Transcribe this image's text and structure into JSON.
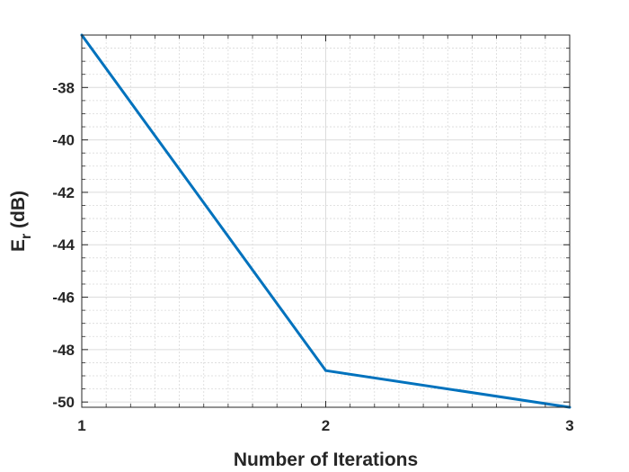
{
  "chart_data": {
    "type": "line",
    "title": "",
    "xlabel": "Number of Iterations",
    "ylabel_main": "E",
    "ylabel_sub": "r",
    "ylabel_rest": " (dB)",
    "xlim": [
      1,
      3
    ],
    "ylim": [
      -50.2,
      -36
    ],
    "xticks": [
      1,
      2,
      3
    ],
    "yticks": [
      -50,
      -48,
      -46,
      -44,
      -42,
      -40,
      -38
    ],
    "grid": true,
    "minor_grid": true,
    "legend": "none",
    "series": [
      {
        "color": "#0072BD",
        "x": [
          1,
          2,
          3
        ],
        "y": [
          -36.0,
          -48.8,
          -50.2
        ]
      }
    ]
  }
}
